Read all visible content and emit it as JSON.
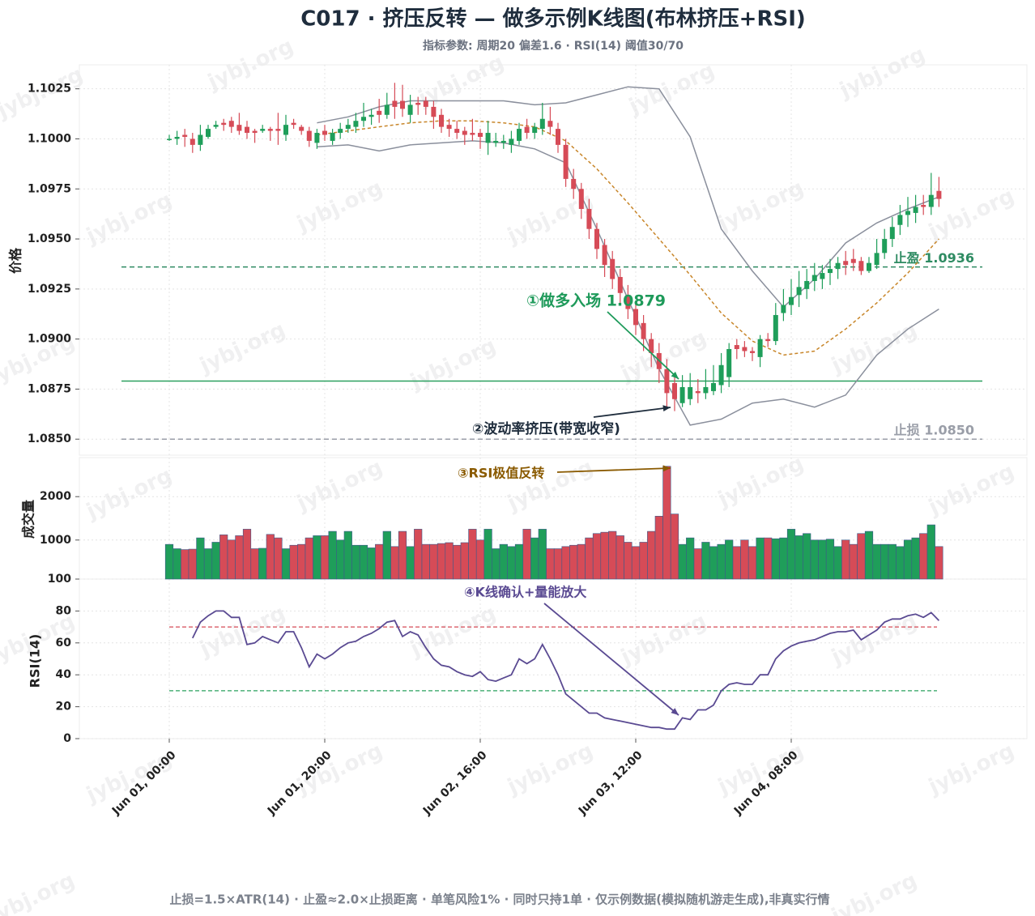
{
  "chart_data": {
    "type": "candlestick",
    "title": "C017 · 挤压反转 — 做多示例K线图(布林挤压+RSI)",
    "subtitle": "指标参数: 周期20 偏差1.6 · RSI(14) 阈值30/70",
    "footer": "止损=1.5×ATR(14) · 止盈≈2.0×止损距离 · 单笔风险1% · 同时只持1单 · 仅示例数据(模拟随机游走生成),非真实行情",
    "watermark": "jybj.org",
    "grid": true,
    "x": [
      "Jun 01, 00:00",
      "Jun 01, 01:00",
      "Jun 01, 02:00",
      "Jun 01, 03:00",
      "Jun 01, 04:00",
      "Jun 01, 05:00",
      "Jun 01, 06:00",
      "Jun 01, 07:00",
      "Jun 01, 08:00",
      "Jun 01, 09:00",
      "Jun 01, 10:00",
      "Jun 01, 11:00",
      "Jun 01, 12:00",
      "Jun 01, 13:00",
      "Jun 01, 14:00",
      "Jun 01, 15:00",
      "Jun 01, 16:00",
      "Jun 01, 17:00",
      "Jun 01, 18:00",
      "Jun 01, 19:00",
      "Jun 01, 20:00",
      "Jun 01, 21:00",
      "Jun 01, 22:00",
      "Jun 01, 23:00",
      "Jun 02, 00:00",
      "Jun 02, 01:00",
      "Jun 02, 02:00",
      "Jun 02, 03:00",
      "Jun 02, 04:00",
      "Jun 02, 05:00",
      "Jun 02, 06:00",
      "Jun 02, 07:00",
      "Jun 02, 08:00",
      "Jun 02, 09:00",
      "Jun 02, 10:00",
      "Jun 02, 11:00",
      "Jun 02, 12:00",
      "Jun 02, 13:00",
      "Jun 02, 14:00",
      "Jun 02, 15:00",
      "Jun 02, 16:00",
      "Jun 02, 17:00",
      "Jun 02, 18:00",
      "Jun 02, 19:00",
      "Jun 02, 20:00",
      "Jun 02, 21:00",
      "Jun 02, 22:00",
      "Jun 02, 23:00",
      "Jun 03, 00:00",
      "Jun 03, 01:00",
      "Jun 03, 02:00",
      "Jun 03, 03:00",
      "Jun 03, 04:00",
      "Jun 03, 05:00",
      "Jun 03, 06:00",
      "Jun 03, 07:00",
      "Jun 03, 08:00",
      "Jun 03, 09:00",
      "Jun 03, 10:00",
      "Jun 03, 11:00",
      "Jun 03, 12:00",
      "Jun 03, 13:00",
      "Jun 03, 14:00",
      "Jun 03, 15:00",
      "Jun 03, 16:00",
      "Jun 03, 17:00",
      "Jun 03, 18:00",
      "Jun 03, 19:00",
      "Jun 03, 20:00",
      "Jun 03, 21:00",
      "Jun 03, 22:00",
      "Jun 03, 23:00",
      "Jun 04, 00:00",
      "Jun 04, 01:00",
      "Jun 04, 02:00",
      "Jun 04, 03:00",
      "Jun 04, 04:00",
      "Jun 04, 05:00",
      "Jun 04, 06:00",
      "Jun 04, 07:00",
      "Jun 04, 08:00",
      "Jun 04, 09:00",
      "Jun 04, 10:00",
      "Jun 04, 11:00",
      "Jun 04, 12:00",
      "Jun 04, 13:00",
      "Jun 04, 14:00",
      "Jun 04, 15:00",
      "Jun 04, 16:00",
      "Jun 04, 17:00",
      "Jun 04, 18:00",
      "Jun 04, 19:00",
      "Jun 04, 20:00",
      "Jun 04, 21:00",
      "Jun 04, 22:00",
      "Jun 04, 23:00",
      "Jun 05, 00:00",
      "Jun 05, 01:00",
      "Jun 05, 02:00",
      "Jun 05, 03:00"
    ],
    "xticks": [
      "Jun 01, 00:00",
      "Jun 01, 20:00",
      "Jun 02, 16:00",
      "Jun 03, 12:00",
      "Jun 04, 08:00"
    ],
    "price": {
      "label": "价格",
      "up_color": "#1f9e5a",
      "down_color": "#d64b57",
      "ylim": [
        1.0842,
        1.1037
      ],
      "yticks": [
        {
          "value": 1.085,
          "label": "1.0850"
        },
        {
          "value": 1.0875,
          "label": "1.0875"
        },
        {
          "value": 1.09,
          "label": "1.0900"
        },
        {
          "value": 1.0925,
          "label": "1.0925"
        },
        {
          "value": 1.095,
          "label": "1.0950"
        },
        {
          "value": 1.0975,
          "label": "1.0975"
        },
        {
          "value": 1.1,
          "label": "1.1000"
        },
        {
          "value": 1.1025,
          "label": "1.1025"
        }
      ],
      "open": [
        1.1,
        1.1,
        1.1002,
        1.1,
        1.0997,
        1.1001,
        1.1006,
        1.1008,
        1.1009,
        1.1007,
        1.1006,
        1.1004,
        1.1004,
        1.1005,
        1.1005,
        1.1002,
        1.1008,
        1.1006,
        1.1004,
        1.0998,
        1.1004,
        1.0999,
        1.1003,
        1.1005,
        1.1006,
        1.1009,
        1.1011,
        1.1014,
        1.1012,
        1.1019,
        1.1019,
        1.1012,
        1.1018,
        1.1019,
        1.1016,
        1.1012,
        1.1007,
        1.1005,
        1.1004,
        1.1003,
        1.1003,
        1.0998,
        1.0998,
        1.0998,
        1.0997,
        1.0999,
        1.1006,
        1.1003,
        1.1005,
        1.1009,
        1.1005,
        1.0997,
        1.098,
        1.0975,
        1.0965,
        1.0955,
        1.0947,
        1.094,
        1.0931,
        1.0922,
        1.0915,
        1.0908,
        1.09,
        1.0893,
        1.0885,
        1.0878,
        1.0868,
        1.087,
        1.0874,
        1.0873,
        1.0874,
        1.0877,
        1.0881,
        1.0897,
        1.0896,
        1.0894,
        1.0891,
        1.09,
        1.0899,
        1.0913,
        1.0917,
        1.0922,
        1.0925,
        1.0929,
        1.093,
        1.0933,
        1.0935,
        1.0939,
        1.094,
        1.0939,
        1.0934,
        1.0937,
        1.0943,
        1.095,
        1.0957,
        1.0962,
        1.0963,
        1.0967,
        1.0966,
        1.0974
      ],
      "high": [
        1.1002,
        1.1004,
        1.1005,
        1.1003,
        1.1007,
        1.1007,
        1.1009,
        1.101,
        1.1011,
        1.1013,
        1.1009,
        1.1005,
        1.1007,
        1.1006,
        1.1013,
        1.1012,
        1.101,
        1.1007,
        1.1006,
        1.1005,
        1.1007,
        1.1005,
        1.1008,
        1.101,
        1.1013,
        1.1018,
        1.1015,
        1.102,
        1.1023,
        1.1028,
        1.1027,
        1.1022,
        1.1021,
        1.1021,
        1.1019,
        1.1015,
        1.101,
        1.1009,
        1.1006,
        1.101,
        1.1005,
        1.1009,
        1.1003,
        1.1002,
        1.1004,
        1.1008,
        1.101,
        1.1008,
        1.1018,
        1.1016,
        1.1008,
        1.1,
        1.0985,
        1.0978,
        1.097,
        1.0958,
        1.095,
        1.0944,
        1.0935,
        1.0927,
        1.0919,
        1.0912,
        1.0903,
        1.0898,
        1.089,
        1.0882,
        1.0882,
        1.0883,
        1.088,
        1.0885,
        1.0887,
        1.0893,
        1.0898,
        1.09,
        1.0899,
        1.0896,
        1.0902,
        1.0903,
        1.0918,
        1.0925,
        1.093,
        1.0934,
        1.0935,
        1.0938,
        1.0937,
        1.094,
        1.0941,
        1.0944,
        1.0945,
        1.0941,
        1.0941,
        1.095,
        1.0955,
        1.0961,
        1.0967,
        1.0971,
        1.0972,
        1.0972,
        1.0983,
        1.0981
      ],
      "low": [
        1.0999,
        1.0997,
        1.0996,
        1.0993,
        1.0994,
        1.1,
        1.1005,
        1.1004,
        1.1003,
        1.1002,
        1.1,
        1.0998,
        1.1003,
        1.0999,
        1.0997,
        1.0999,
        1.1005,
        1.1002,
        1.0996,
        1.0995,
        1.0999,
        1.0997,
        1.1,
        1.1003,
        1.1003,
        1.1006,
        1.1007,
        1.1008,
        1.101,
        1.101,
        1.1011,
        1.1008,
        1.1012,
        1.1012,
        1.1005,
        1.1003,
        1.1001,
        1.1,
        1.0997,
        1.0999,
        1.0995,
        1.0992,
        1.0996,
        1.0995,
        1.0993,
        1.0997,
        1.1,
        1.1,
        1.1002,
        1.1002,
        1.0993,
        1.0976,
        1.097,
        1.096,
        1.095,
        1.094,
        1.0931,
        1.0925,
        1.0918,
        1.091,
        1.0902,
        1.0894,
        1.0886,
        1.0878,
        1.0866,
        1.0864,
        1.0866,
        1.0867,
        1.0868,
        1.087,
        1.0872,
        1.0873,
        1.0876,
        1.089,
        1.0891,
        1.0889,
        1.0886,
        1.0896,
        1.0897,
        1.0909,
        1.0912,
        1.0916,
        1.092,
        1.0924,
        1.0925,
        1.0927,
        1.093,
        1.0932,
        1.0934,
        1.0932,
        1.0933,
        1.0935,
        1.094,
        1.0946,
        1.0952,
        1.0956,
        1.0958,
        1.0962,
        1.0962,
        1.0966
      ],
      "close": [
        1.1,
        1.1001,
        1.1001,
        1.0997,
        1.1002,
        1.1005,
        1.1007,
        1.1007,
        1.1006,
        1.1004,
        1.1003,
        1.1003,
        1.1005,
        1.1004,
        1.1004,
        1.1007,
        1.1007,
        1.1004,
        1.0999,
        1.1003,
        1.1002,
        1.1003,
        1.1005,
        1.1007,
        1.1009,
        1.1011,
        1.1012,
        1.1012,
        1.1017,
        1.1016,
        1.1015,
        1.1017,
        1.1017,
        1.1016,
        1.1011,
        1.1006,
        1.1005,
        1.1003,
        1.1002,
        1.1002,
        1.1001,
        1.1003,
        1.0999,
        1.0999,
        1.1,
        1.1005,
        1.1003,
        1.1006,
        1.101,
        1.1006,
        1.0997,
        1.098,
        1.0975,
        1.0965,
        1.0955,
        1.0945,
        1.0937,
        1.093,
        1.0923,
        1.0915,
        1.0907,
        1.09,
        1.0893,
        1.0885,
        1.0873,
        1.087,
        1.0876,
        1.0876,
        1.0873,
        1.0876,
        1.0878,
        1.0887,
        1.0895,
        1.0895,
        1.0894,
        1.0893,
        1.09,
        1.0899,
        1.0912,
        1.0917,
        1.0921,
        1.0926,
        1.0929,
        1.0932,
        1.0933,
        1.0935,
        1.0938,
        1.0937,
        1.0938,
        1.0934,
        1.0938,
        1.0943,
        1.095,
        1.0956,
        1.0962,
        1.0964,
        1.0966,
        1.0966,
        1.0972,
        1.097
      ]
    },
    "bollinger": {
      "x": [
        "Jun 01, 19:00",
        "Jun 01, 23:00",
        "Jun 02, 03:00",
        "Jun 02, 07:00",
        "Jun 02, 11:00",
        "Jun 02, 15:00",
        "Jun 02, 19:00",
        "Jun 02, 23:00",
        "Jun 03, 03:00",
        "Jun 03, 07:00",
        "Jun 03, 11:00",
        "Jun 03, 15:00",
        "Jun 03, 19:00",
        "Jun 03, 23:00",
        "Jun 04, 03:00",
        "Jun 04, 07:00",
        "Jun 04, 11:00",
        "Jun 04, 15:00",
        "Jun 04, 19:00",
        "Jun 04, 23:00",
        "Jun 05, 03:00"
      ],
      "lines": [
        {
          "color": "#8a8f9c",
          "style": "solid",
          "values": [
            1.1008,
            1.1011,
            1.1016,
            1.1019,
            1.1019,
            1.1019,
            1.1019,
            1.1017,
            1.1018,
            1.1022,
            1.1026,
            1.1025,
            1.1001,
            1.0955,
            1.0934,
            1.0916,
            1.093,
            1.0948,
            1.0958,
            1.0965,
            1.0971
          ]
        },
        {
          "color": "#c8862a",
          "style": "dashed",
          "values": [
            1.1002,
            1.1004,
            1.1006,
            1.1008,
            1.1009,
            1.1009,
            1.1008,
            1.1006,
            1.0999,
            1.0985,
            1.0968,
            1.095,
            1.0932,
            1.0913,
            1.0899,
            1.0892,
            1.0894,
            1.0905,
            1.0918,
            1.0933,
            1.095
          ]
        },
        {
          "color": "#8a8f9c",
          "style": "solid",
          "values": [
            1.0996,
            1.0997,
            1.0994,
            1.0997,
            1.0998,
            1.0999,
            1.0998,
            1.0995,
            1.0988,
            1.0955,
            1.092,
            1.0885,
            1.0857,
            1.086,
            1.0868,
            1.087,
            1.0866,
            1.0872,
            1.0892,
            1.0905,
            1.0915
          ]
        }
      ]
    },
    "levels": [
      {
        "label": "止盈 1.0936",
        "value": 1.0936,
        "color": "#2e8b62",
        "style": "dashed"
      },
      {
        "value": 1.0879,
        "color": "#2aa05f",
        "style": "solid"
      },
      {
        "label": "止损 1.0850",
        "value": 1.085,
        "color": "#9a9ea8",
        "style": "dashed"
      }
    ],
    "volume": {
      "label": "成交量",
      "ylim": [
        100,
        2900
      ],
      "yticks": [
        100,
        1000,
        2000
      ],
      "values": [
        900,
        800,
        780,
        790,
        1050,
        800,
        950,
        1120,
        1000,
        1100,
        1250,
        800,
        810,
        1130,
        1050,
        800,
        880,
        900,
        1050,
        1100,
        1100,
        1200,
        1000,
        1200,
        880,
        880,
        820,
        900,
        1200,
        850,
        1200,
        850,
        1250,
        900,
        900,
        920,
        940,
        880,
        940,
        1250,
        1000,
        1250,
        800,
        900,
        850,
        900,
        1250,
        1050,
        1250,
        800,
        800,
        850,
        880,
        900,
        1050,
        1150,
        1180,
        1200,
        1100,
        950,
        850,
        950,
        1200,
        1550,
        2700,
        1600,
        900,
        1050,
        800,
        950,
        850,
        900,
        1000,
        850,
        1000,
        850,
        1050,
        1050,
        1030,
        1050,
        1250,
        1100,
        1150,
        1000,
        1000,
        1020,
        850,
        1000,
        900,
        1150,
        1200,
        900,
        900,
        900,
        850,
        1000,
        1050,
        1150,
        1350,
        850
      ]
    },
    "rsi": {
      "label": "RSI(14)",
      "color": "#5a4a92",
      "ylim": [
        0,
        100
      ],
      "yticks": [
        0,
        20,
        40,
        60,
        80
      ],
      "levels": [
        {
          "value": 70,
          "color": "#d64b57"
        },
        {
          "value": 30,
          "color": "#2aa05f"
        }
      ],
      "values": [
        null,
        null,
        null,
        63,
        73,
        77,
        80,
        80,
        76,
        76,
        59,
        60,
        64,
        62,
        60,
        67,
        67,
        57,
        45,
        53,
        50,
        53,
        57,
        60,
        61,
        64,
        66,
        69,
        73,
        74,
        64,
        67,
        65,
        57,
        50,
        46,
        45,
        42,
        40,
        39,
        42,
        37,
        36,
        38,
        40,
        50,
        47,
        50,
        59,
        50,
        40,
        28,
        24,
        20,
        16,
        16,
        13,
        12,
        11,
        10,
        9,
        8,
        7,
        7,
        6,
        6,
        13,
        12,
        18,
        18,
        21,
        30,
        34,
        35,
        34,
        34,
        40,
        40,
        50,
        55,
        58,
        60,
        61,
        62,
        64,
        66,
        67,
        67,
        68,
        62,
        65,
        68,
        73,
        75,
        75,
        77,
        78,
        76,
        79,
        74
      ]
    },
    "annotations": [
      {
        "text": "①做多入场 1.0879",
        "color": "#1e9a5a"
      },
      {
        "text": "②波动率挤压(带宽收窄)",
        "color": "#1f2d3d"
      },
      {
        "text": "③RSI极值反转",
        "color": "#8a5a00"
      },
      {
        "text": "④K线确认+量能放大",
        "color": "#5a4a92"
      }
    ]
  }
}
